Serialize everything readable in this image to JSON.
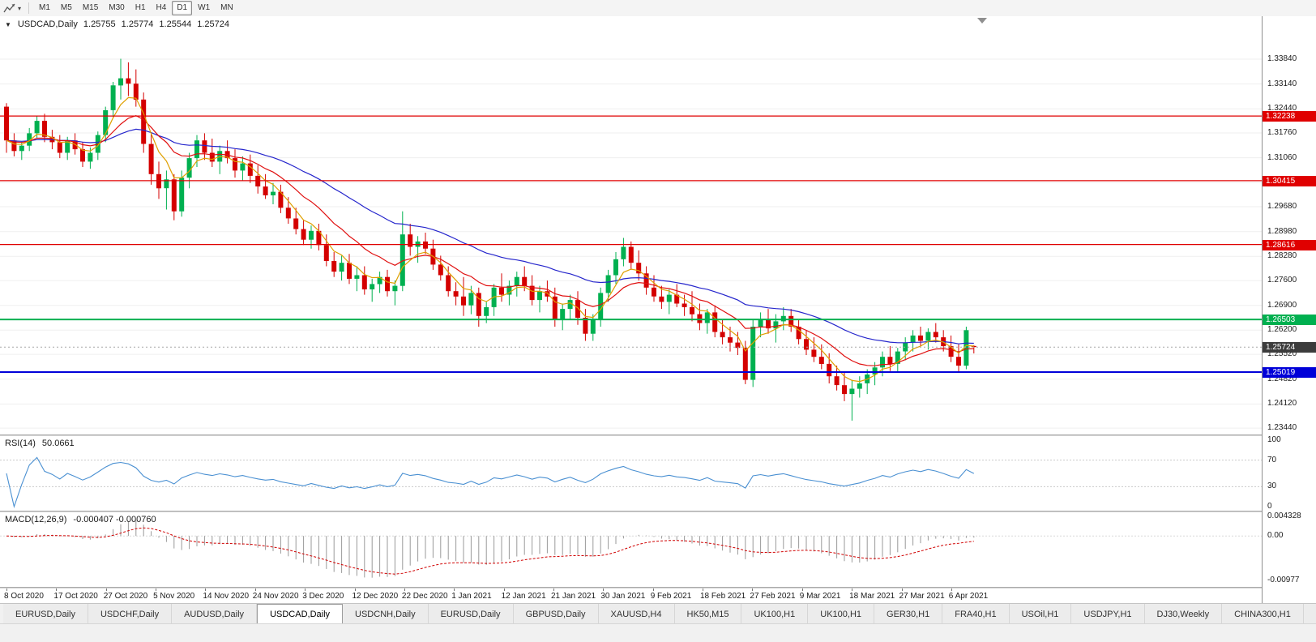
{
  "toolbar": {
    "timeframes": [
      "M1",
      "M5",
      "M15",
      "M30",
      "H1",
      "H4",
      "D1",
      "W1",
      "MN"
    ],
    "active": "D1"
  },
  "chart": {
    "collapse_icon": "▼",
    "title": "USDCAD,Daily",
    "ohlc": {
      "open": "1.25755",
      "high": "1.25774",
      "low": "1.25544",
      "close": "1.25724"
    }
  },
  "rsi": {
    "label": "RSI(14)",
    "value": "50.0661"
  },
  "macd": {
    "label": "MACD(12,26,9)",
    "values": "-0.000407 -0.000760"
  },
  "colors": {
    "candle_up": "#00b050",
    "candle_down": "#d40000",
    "rsi_line": "#4a90d2",
    "macd_hist": "#9a9a9a",
    "macd_signal": "#d00000",
    "grid": "#efefef"
  },
  "tabs": [
    {
      "label": "EURUSD,Daily"
    },
    {
      "label": "USDCHF,Daily"
    },
    {
      "label": "AUDUSD,Daily"
    },
    {
      "label": "USDCAD,Daily",
      "active": true
    },
    {
      "label": "USDCNH,Daily"
    },
    {
      "label": "EURUSD,Daily"
    },
    {
      "label": "GBPUSD,Daily"
    },
    {
      "label": "XAUUSD,H4"
    },
    {
      "label": "HK50,M15"
    },
    {
      "label": "UK100,H1"
    },
    {
      "label": "UK100,H1"
    },
    {
      "label": "GER30,H1"
    },
    {
      "label": "FRA40,H1"
    },
    {
      "label": "USOil,H1"
    },
    {
      "label": "USDJPY,H1"
    },
    {
      "label": "DJ30,Weekly"
    },
    {
      "label": "CHINA300,H1"
    },
    {
      "label": "U"
    }
  ],
  "chart_data": {
    "type": "candlestick",
    "symbol": "USDCAD",
    "timeframe": "Daily",
    "x_labels": [
      "8 Oct 2020",
      "17 Oct 2020",
      "27 Oct 2020",
      "5 Nov 2020",
      "14 Nov 2020",
      "24 Nov 2020",
      "3 Dec 2020",
      "12 Dec 2020",
      "22 Dec 2020",
      "1 Jan 2021",
      "12 Jan 2021",
      "21 Jan 2021",
      "30 Jan 2021",
      "9 Feb 2021",
      "18 Feb 2021",
      "27 Feb 2021",
      "9 Mar 2021",
      "18 Mar 2021",
      "27 Mar 2021",
      "6 Apr 2021"
    ],
    "price_ticks": [
      1.3384,
      1.3314,
      1.3244,
      1.3176,
      1.3106,
      1.3036,
      1.2968,
      1.2898,
      1.2828,
      1.276,
      1.269,
      1.262,
      1.2552,
      1.2482,
      1.2412,
      1.2344
    ],
    "ylim": [
      1.2326,
      1.3505
    ],
    "hlines": [
      {
        "price": 1.32238,
        "label": "1.32238",
        "color": "#e00000",
        "width": 1.2
      },
      {
        "price": 1.30415,
        "label": "1.30415",
        "color": "#e00000",
        "width": 1.2
      },
      {
        "price": 1.28616,
        "label": "1.28616",
        "color": "#e00000",
        "width": 1.2
      },
      {
        "price": 1.26503,
        "label": "1.26503",
        "color": "#00b050",
        "width": 2
      },
      {
        "price": 1.25019,
        "label": "1.25019",
        "color": "#0000d8",
        "width": 2
      }
    ],
    "last_price": {
      "price": 1.25724,
      "label": "1.25724",
      "color": "#3c3c3c"
    },
    "moving_averages": [
      {
        "name": "slow",
        "period": 34,
        "color": "#2626cc"
      },
      {
        "name": "medium",
        "period": 13,
        "color": "#e01010"
      },
      {
        "name": "fast",
        "period": 5,
        "color": "#dfa000"
      }
    ],
    "rsi": {
      "period": 14,
      "last_value": 50.0661,
      "levels": [
        70,
        30
      ],
      "range": [
        0,
        100
      ],
      "axis": [
        {
          "label": "100",
          "value": 100
        },
        {
          "label": "70",
          "value": 70
        },
        {
          "label": "30",
          "value": 30
        },
        {
          "label": "0",
          "value": 0
        }
      ]
    },
    "macd": {
      "fast": 12,
      "slow": 26,
      "signal_period": 9,
      "last_macd": -0.000407,
      "last_signal": -0.00076,
      "range": [
        -0.00977,
        0.004328
      ],
      "axis": [
        {
          "label": "0.004328",
          "value": 0.004328
        },
        {
          "label": "0.00",
          "value": 0
        },
        {
          "label": "-0.00977",
          "value": -0.00977
        }
      ]
    },
    "candles": [
      [
        1.325,
        1.326,
        1.312,
        1.3155
      ],
      [
        1.3155,
        1.3175,
        1.311,
        1.3125
      ],
      [
        1.3125,
        1.315,
        1.31,
        1.314
      ],
      [
        1.314,
        1.319,
        1.3125,
        1.3175
      ],
      [
        1.3175,
        1.3225,
        1.316,
        1.321
      ],
      [
        1.321,
        1.323,
        1.315,
        1.3165
      ],
      [
        1.3165,
        1.3185,
        1.313,
        1.315
      ],
      [
        1.315,
        1.317,
        1.3105,
        1.312
      ],
      [
        1.312,
        1.3165,
        1.31,
        1.3155
      ],
      [
        1.3155,
        1.3175,
        1.3115,
        1.313
      ],
      [
        1.313,
        1.315,
        1.308,
        1.3095
      ],
      [
        1.3095,
        1.3135,
        1.3075,
        1.312
      ],
      [
        1.312,
        1.318,
        1.31,
        1.317
      ],
      [
        1.317,
        1.325,
        1.315,
        1.324
      ],
      [
        1.324,
        1.332,
        1.322,
        1.331
      ],
      [
        1.331,
        1.3385,
        1.327,
        1.333
      ],
      [
        1.333,
        1.3375,
        1.328,
        1.3315
      ],
      [
        1.3315,
        1.3355,
        1.325,
        1.327
      ],
      [
        1.327,
        1.329,
        1.312,
        1.3145
      ],
      [
        1.3145,
        1.3175,
        1.303,
        1.306
      ],
      [
        1.306,
        1.3095,
        1.299,
        1.302
      ],
      [
        1.302,
        1.307,
        1.296,
        1.3045
      ],
      [
        1.3045,
        1.306,
        1.293,
        1.2955
      ],
      [
        1.2955,
        1.307,
        1.294,
        1.305
      ],
      [
        1.305,
        1.312,
        1.302,
        1.3105
      ],
      [
        1.3105,
        1.317,
        1.308,
        1.3155
      ],
      [
        1.3155,
        1.3175,
        1.31,
        1.312
      ],
      [
        1.312,
        1.316,
        1.308,
        1.3095
      ],
      [
        1.3095,
        1.314,
        1.306,
        1.3125
      ],
      [
        1.3125,
        1.3155,
        1.309,
        1.3105
      ],
      [
        1.3105,
        1.313,
        1.305,
        1.307
      ],
      [
        1.307,
        1.311,
        1.304,
        1.309
      ],
      [
        1.309,
        1.3115,
        1.3035,
        1.3055
      ],
      [
        1.3055,
        1.3085,
        1.3005,
        1.3025
      ],
      [
        1.3025,
        1.306,
        1.299,
        1.3
      ],
      [
        1.3,
        1.3035,
        1.2975,
        1.301
      ],
      [
        1.301,
        1.303,
        1.295,
        1.2965
      ],
      [
        1.2965,
        1.2995,
        1.292,
        1.2935
      ],
      [
        1.2935,
        1.2965,
        1.289,
        1.2905
      ],
      [
        1.2905,
        1.293,
        1.286,
        1.2875
      ],
      [
        1.2875,
        1.2915,
        1.285,
        1.29
      ],
      [
        1.29,
        1.292,
        1.2845,
        1.286
      ],
      [
        1.286,
        1.289,
        1.28,
        1.2815
      ],
      [
        1.2815,
        1.284,
        1.277,
        1.2785
      ],
      [
        1.2785,
        1.283,
        1.276,
        1.281
      ],
      [
        1.281,
        1.2835,
        1.275,
        1.2765
      ],
      [
        1.2765,
        1.28,
        1.273,
        1.2775
      ],
      [
        1.2775,
        1.28,
        1.272,
        1.2735
      ],
      [
        1.2735,
        1.2765,
        1.27,
        1.275
      ],
      [
        1.275,
        1.2785,
        1.2725,
        1.277
      ],
      [
        1.277,
        1.279,
        1.2715,
        1.273
      ],
      [
        1.273,
        1.276,
        1.269,
        1.2745
      ],
      [
        1.2745,
        1.2955,
        1.273,
        1.289
      ],
      [
        1.289,
        1.292,
        1.283,
        1.2855
      ],
      [
        1.2855,
        1.2885,
        1.281,
        1.287
      ],
      [
        1.287,
        1.2895,
        1.2835,
        1.285
      ],
      [
        1.285,
        1.2875,
        1.279,
        1.2805
      ],
      [
        1.2805,
        1.283,
        1.276,
        1.2775
      ],
      [
        1.2775,
        1.28,
        1.2715,
        1.273
      ],
      [
        1.273,
        1.2755,
        1.269,
        1.2715
      ],
      [
        1.2715,
        1.277,
        1.266,
        1.269
      ],
      [
        1.269,
        1.2745,
        1.2665,
        1.2725
      ],
      [
        1.2725,
        1.274,
        1.263,
        1.266
      ],
      [
        1.266,
        1.27,
        1.264,
        1.2685
      ],
      [
        1.2685,
        1.275,
        1.266,
        1.274
      ],
      [
        1.274,
        1.278,
        1.27,
        1.272
      ],
      [
        1.272,
        1.276,
        1.269,
        1.2745
      ],
      [
        1.2745,
        1.2785,
        1.2715,
        1.277
      ],
      [
        1.277,
        1.28,
        1.273,
        1.2745
      ],
      [
        1.2745,
        1.2775,
        1.269,
        1.2705
      ],
      [
        1.2705,
        1.2745,
        1.267,
        1.273
      ],
      [
        1.273,
        1.276,
        1.27,
        1.2715
      ],
      [
        1.2715,
        1.274,
        1.263,
        1.265
      ],
      [
        1.265,
        1.2695,
        1.262,
        1.268
      ],
      [
        1.268,
        1.272,
        1.265,
        1.2705
      ],
      [
        1.2705,
        1.273,
        1.2635,
        1.2655
      ],
      [
        1.2655,
        1.268,
        1.259,
        1.261
      ],
      [
        1.261,
        1.2665,
        1.259,
        1.265
      ],
      [
        1.265,
        1.274,
        1.263,
        1.2725
      ],
      [
        1.2725,
        1.279,
        1.27,
        1.2775
      ],
      [
        1.2775,
        1.284,
        1.275,
        1.282
      ],
      [
        1.282,
        1.288,
        1.28,
        1.2855
      ],
      [
        1.2855,
        1.287,
        1.279,
        1.281
      ],
      [
        1.281,
        1.2845,
        1.276,
        1.278
      ],
      [
        1.278,
        1.28,
        1.272,
        1.274
      ],
      [
        1.274,
        1.2775,
        1.27,
        1.2715
      ],
      [
        1.2715,
        1.2745,
        1.268,
        1.27
      ],
      [
        1.27,
        1.2735,
        1.2665,
        1.272
      ],
      [
        1.272,
        1.275,
        1.2685,
        1.2695
      ],
      [
        1.2695,
        1.272,
        1.266,
        1.2685
      ],
      [
        1.2685,
        1.273,
        1.2645,
        1.2665
      ],
      [
        1.2665,
        1.2695,
        1.262,
        1.264
      ],
      [
        1.264,
        1.268,
        1.261,
        1.267
      ],
      [
        1.267,
        1.269,
        1.26,
        1.2615
      ],
      [
        1.2615,
        1.265,
        1.258,
        1.26
      ],
      [
        1.26,
        1.263,
        1.256,
        1.2585
      ],
      [
        1.2585,
        1.2615,
        1.255,
        1.257
      ],
      [
        1.257,
        1.259,
        1.2468,
        1.248
      ],
      [
        1.248,
        1.265,
        1.246,
        1.263
      ],
      [
        1.263,
        1.267,
        1.26,
        1.265
      ],
      [
        1.265,
        1.268,
        1.261,
        1.2625
      ],
      [
        1.2625,
        1.2665,
        1.2585,
        1.2645
      ],
      [
        1.2645,
        1.2685,
        1.262,
        1.266
      ],
      [
        1.266,
        1.268,
        1.2615,
        1.263
      ],
      [
        1.263,
        1.265,
        1.258,
        1.2595
      ],
      [
        1.2595,
        1.262,
        1.255,
        1.2565
      ],
      [
        1.2565,
        1.26,
        1.253,
        1.2545
      ],
      [
        1.2545,
        1.258,
        1.251,
        1.2525
      ],
      [
        1.2525,
        1.2555,
        1.247,
        1.249
      ],
      [
        1.249,
        1.252,
        1.245,
        1.2465
      ],
      [
        1.2465,
        1.25,
        1.242,
        1.244
      ],
      [
        1.244,
        1.248,
        1.2365,
        1.2455
      ],
      [
        1.2455,
        1.249,
        1.243,
        1.247
      ],
      [
        1.247,
        1.251,
        1.244,
        1.2495
      ],
      [
        1.2495,
        1.253,
        1.2465,
        1.2515
      ],
      [
        1.2515,
        1.256,
        1.249,
        1.2545
      ],
      [
        1.2545,
        1.2575,
        1.2505,
        1.2525
      ],
      [
        1.2525,
        1.257,
        1.25,
        1.256
      ],
      [
        1.256,
        1.26,
        1.2535,
        1.2585
      ],
      [
        1.2585,
        1.262,
        1.256,
        1.2605
      ],
      [
        1.2605,
        1.263,
        1.2575,
        1.259
      ],
      [
        1.259,
        1.2625,
        1.2565,
        1.2615
      ],
      [
        1.2615,
        1.264,
        1.2585,
        1.26
      ],
      [
        1.26,
        1.262,
        1.256,
        1.2575
      ],
      [
        1.2575,
        1.2605,
        1.253,
        1.2545
      ],
      [
        1.2545,
        1.258,
        1.25,
        1.252
      ],
      [
        1.252,
        1.263,
        1.251,
        1.262
      ],
      [
        1.25755,
        1.25774,
        1.25544,
        1.25724
      ]
    ]
  }
}
